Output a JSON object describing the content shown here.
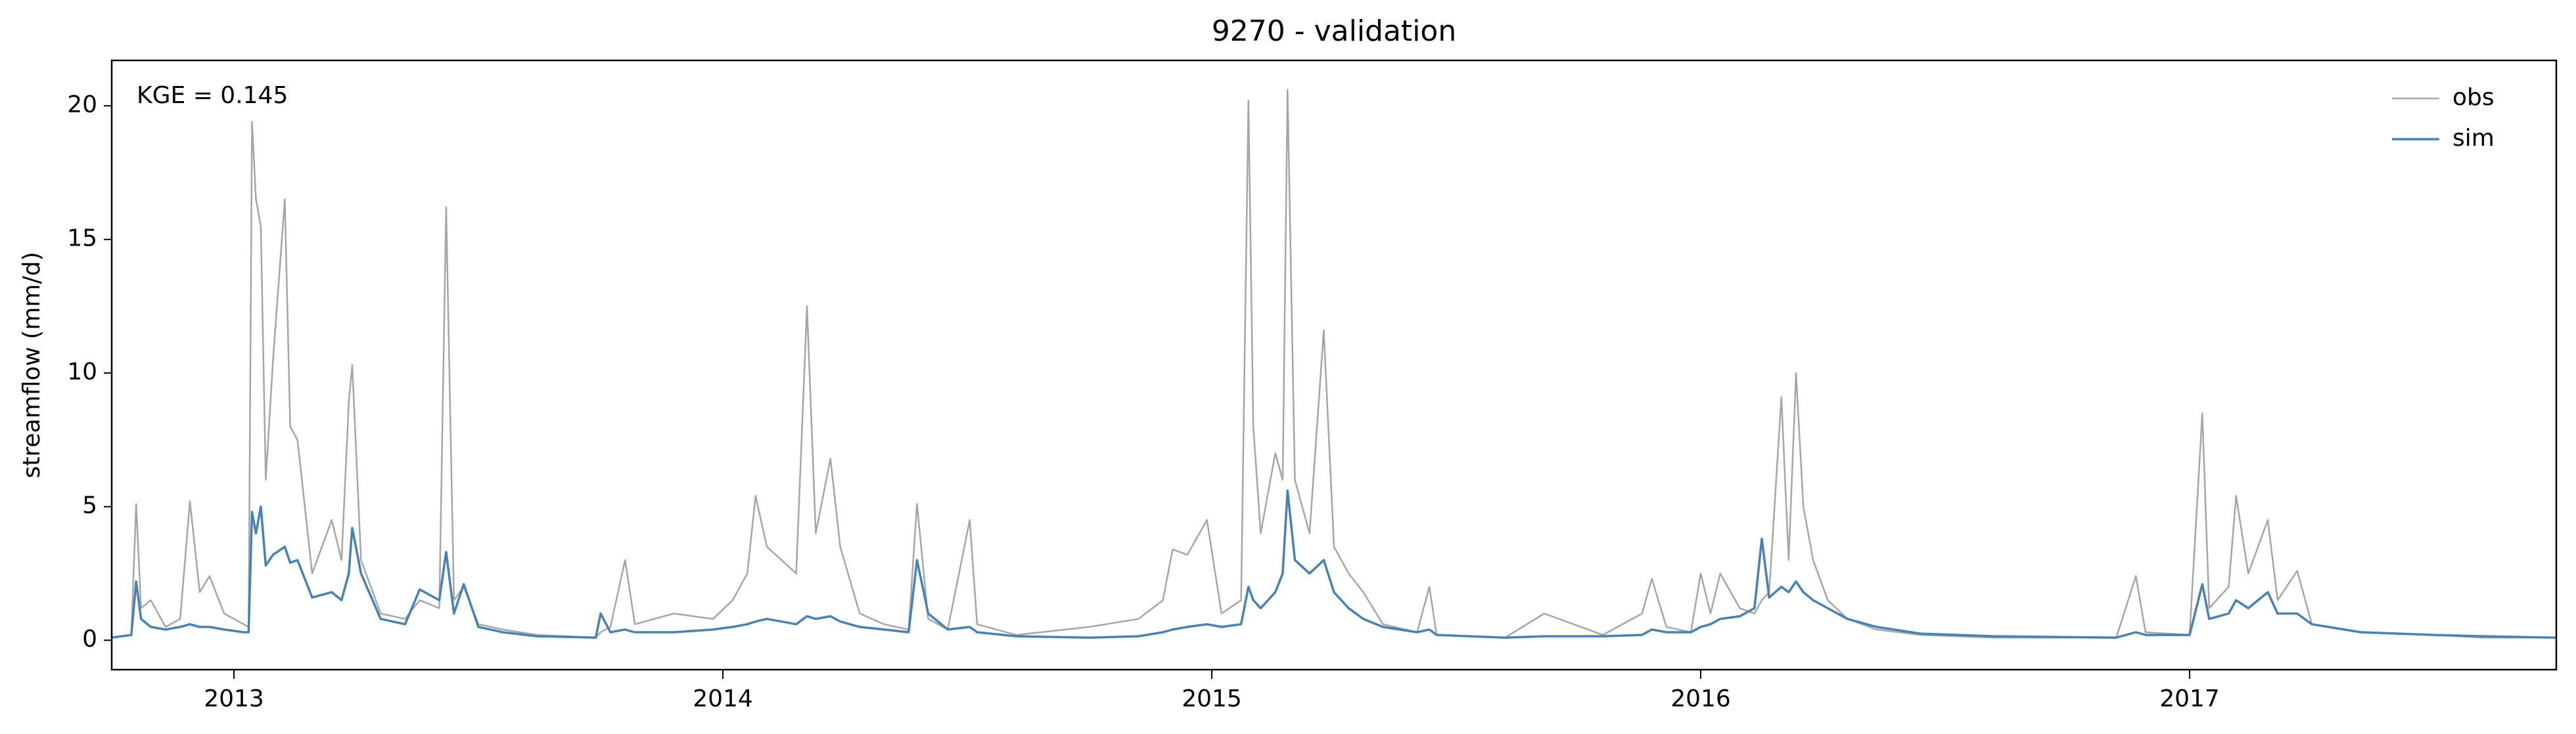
{
  "chart_data": {
    "type": "line",
    "title": "9270 - validation",
    "ylabel": "streamflow (mm/d)",
    "annotation": "KGE = 0.145",
    "legend": "upper right",
    "x": [
      2012.75,
      2012.79,
      2012.8,
      2012.81,
      2012.83,
      2012.86,
      2012.89,
      2012.91,
      2012.93,
      2012.95,
      2012.98,
      2013.02,
      2013.03,
      2013.037,
      2013.045,
      2013.055,
      2013.065,
      2013.08,
      2013.104,
      2013.115,
      2013.13,
      2013.16,
      2013.2,
      2013.22,
      2013.235,
      2013.242,
      2013.26,
      2013.3,
      2013.35,
      2013.38,
      2013.42,
      2013.434,
      2013.45,
      2013.47,
      2013.5,
      2013.55,
      2013.62,
      2013.74,
      2013.75,
      2013.77,
      2013.8,
      2013.82,
      2013.9,
      2013.98,
      2014.02,
      2014.05,
      2014.067,
      2014.09,
      2014.12,
      2014.15,
      2014.172,
      2014.19,
      2014.22,
      2014.24,
      2014.28,
      2014.33,
      2014.38,
      2014.397,
      2014.42,
      2014.46,
      2014.505,
      2014.52,
      2014.6,
      2014.75,
      2014.85,
      2014.9,
      2014.92,
      2014.95,
      2014.99,
      2015.02,
      2015.06,
      2015.075,
      2015.085,
      2015.1,
      2015.13,
      2015.145,
      2015.155,
      2015.17,
      2015.2,
      2015.229,
      2015.25,
      2015.28,
      2015.31,
      2015.35,
      2015.42,
      2015.445,
      2015.46,
      2015.6,
      2015.68,
      2015.8,
      2015.88,
      2015.9,
      2015.93,
      2015.98,
      2016.0,
      2016.02,
      2016.04,
      2016.08,
      2016.11,
      2016.125,
      2016.14,
      2016.165,
      2016.18,
      2016.195,
      2016.21,
      2016.23,
      2016.26,
      2016.3,
      2016.36,
      2016.45,
      2016.6,
      2016.85,
      2016.89,
      2016.91,
      2017.0,
      2017.026,
      2017.04,
      2017.08,
      2017.095,
      2017.12,
      2017.16,
      2017.18,
      2017.22,
      2017.25,
      2017.35,
      2017.5,
      2017.6,
      2017.75
    ],
    "series": [
      {
        "name": "obs",
        "color": "#a6a6a6",
        "values": [
          0.1,
          0.2,
          5.1,
          1.2,
          1.5,
          0.5,
          0.8,
          5.2,
          1.8,
          2.4,
          1.0,
          0.6,
          0.5,
          19.4,
          16.5,
          15.5,
          6.0,
          10.5,
          16.5,
          8.0,
          7.5,
          2.5,
          4.5,
          3.0,
          8.9,
          10.3,
          3.0,
          1.0,
          0.8,
          1.5,
          1.2,
          16.2,
          1.5,
          2.0,
          0.6,
          0.4,
          0.2,
          0.1,
          0.3,
          0.5,
          3.0,
          0.6,
          1.0,
          0.8,
          1.5,
          2.5,
          5.4,
          3.5,
          3.0,
          2.5,
          12.5,
          4.0,
          6.8,
          3.5,
          1.0,
          0.6,
          0.4,
          5.1,
          0.8,
          0.4,
          4.5,
          0.6,
          0.2,
          0.5,
          0.8,
          1.5,
          3.4,
          3.2,
          4.5,
          1.0,
          1.5,
          20.2,
          8.0,
          4.0,
          7.0,
          6.0,
          20.6,
          6.0,
          4.0,
          11.6,
          3.5,
          2.5,
          1.8,
          0.6,
          0.3,
          2.0,
          0.2,
          0.1,
          1.0,
          0.2,
          1.0,
          2.3,
          0.5,
          0.3,
          2.5,
          1.0,
          2.5,
          1.2,
          1.0,
          1.5,
          1.8,
          9.1,
          3.0,
          10.0,
          5.0,
          3.0,
          1.5,
          0.8,
          0.4,
          0.2,
          0.1,
          0.1,
          2.4,
          0.3,
          0.2,
          8.5,
          1.2,
          2.0,
          5.4,
          2.5,
          4.5,
          1.5,
          2.6,
          0.6,
          0.3,
          0.2,
          0.1,
          0.1
        ]
      },
      {
        "name": "sim",
        "color": "#4682b4",
        "values": [
          0.1,
          0.2,
          2.2,
          0.8,
          0.5,
          0.4,
          0.5,
          0.6,
          0.5,
          0.5,
          0.4,
          0.3,
          0.3,
          4.8,
          4.0,
          5.0,
          2.8,
          3.2,
          3.5,
          2.9,
          3.0,
          1.6,
          1.8,
          1.5,
          2.5,
          4.2,
          2.5,
          0.8,
          0.6,
          1.9,
          1.5,
          3.3,
          1.0,
          2.1,
          0.5,
          0.3,
          0.15,
          0.1,
          1.0,
          0.3,
          0.4,
          0.3,
          0.3,
          0.4,
          0.5,
          0.6,
          0.7,
          0.8,
          0.7,
          0.6,
          0.9,
          0.8,
          0.9,
          0.7,
          0.5,
          0.4,
          0.3,
          3.0,
          1.0,
          0.4,
          0.5,
          0.3,
          0.15,
          0.1,
          0.15,
          0.3,
          0.4,
          0.5,
          0.6,
          0.5,
          0.6,
          2.0,
          1.5,
          1.2,
          1.8,
          2.5,
          5.6,
          3.0,
          2.5,
          3.0,
          1.8,
          1.2,
          0.8,
          0.5,
          0.3,
          0.4,
          0.2,
          0.1,
          0.15,
          0.15,
          0.2,
          0.4,
          0.3,
          0.3,
          0.5,
          0.6,
          0.8,
          0.9,
          1.2,
          3.8,
          1.6,
          2.0,
          1.8,
          2.2,
          1.8,
          1.5,
          1.2,
          0.8,
          0.5,
          0.25,
          0.15,
          0.1,
          0.3,
          0.2,
          0.2,
          2.1,
          0.8,
          1.0,
          1.5,
          1.2,
          1.8,
          1.0,
          1.0,
          0.6,
          0.3,
          0.2,
          0.15,
          0.1
        ]
      }
    ],
    "xlim": [
      2012.75,
      2017.75
    ],
    "xticks": [
      2013,
      2014,
      2015,
      2016,
      2017
    ],
    "ylim": [
      -1.1,
      21.7
    ],
    "yticks": [
      0,
      5,
      10,
      15,
      20
    ],
    "grid": false
  }
}
